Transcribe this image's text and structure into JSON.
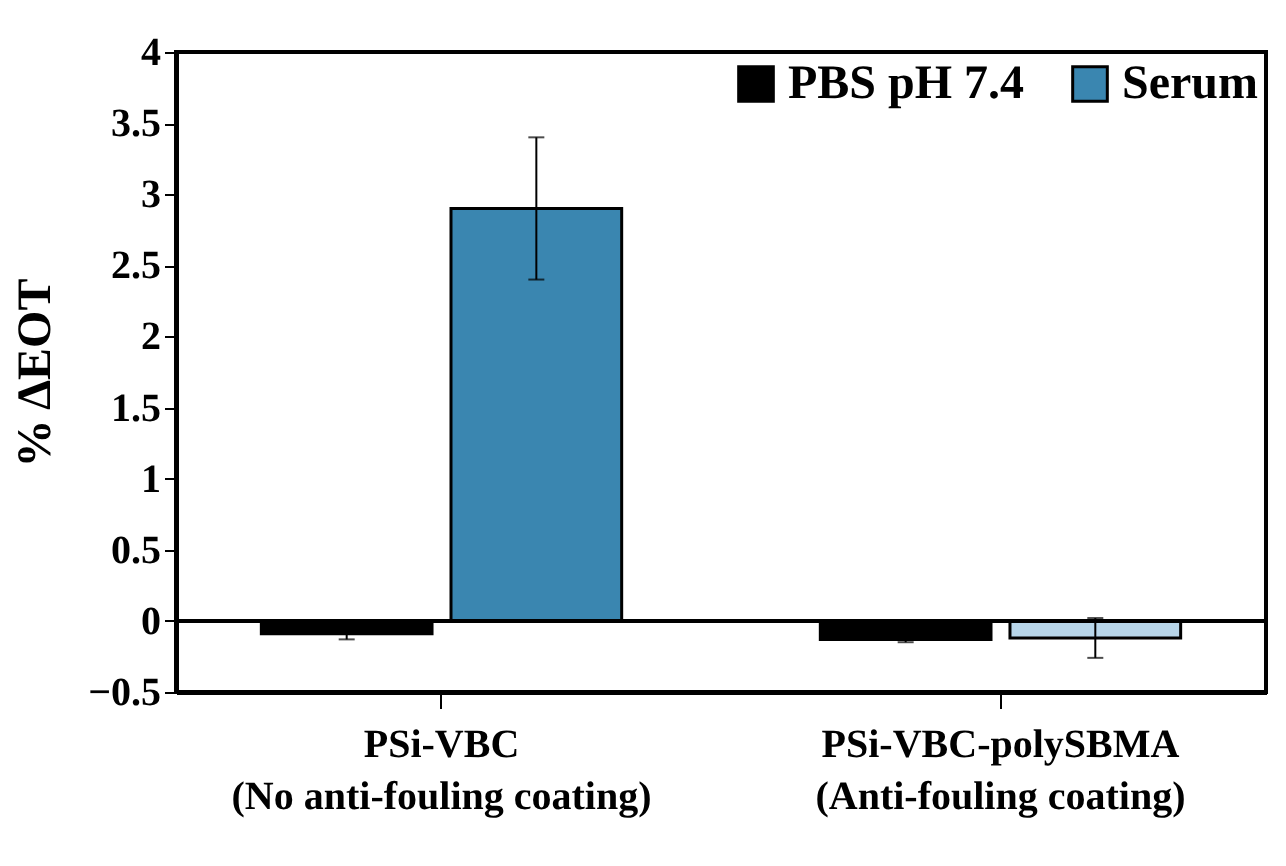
{
  "chart_data": {
    "type": "bar",
    "categories": [
      "PSi-VBC\n(No anti-fouling coating)",
      "PSi-VBC-polySBMA\n(Anti-fouling coating)"
    ],
    "ylabel": "% ΔEOT",
    "ylim": [
      -0.5,
      4
    ],
    "yticks": [
      -0.5,
      0,
      0.5,
      1,
      1.5,
      2,
      2.5,
      3,
      3.5,
      4
    ],
    "series": [
      {
        "name": "PBS pH 7.4",
        "color": "#000000",
        "values": [
          -0.09,
          -0.13
        ],
        "errors": [
          0.04,
          0.02
        ]
      },
      {
        "name": "Serum",
        "color": "#3a86b0",
        "colors": [
          "#3a86b0",
          "#b8d6ea"
        ],
        "values": [
          2.9,
          -0.12
        ],
        "errors": [
          0.5,
          0.14
        ]
      }
    ],
    "ref_lines": [
      {
        "axis": "y",
        "value": 0,
        "color": "#000000"
      }
    ],
    "legend": "top right",
    "grid": false
  }
}
